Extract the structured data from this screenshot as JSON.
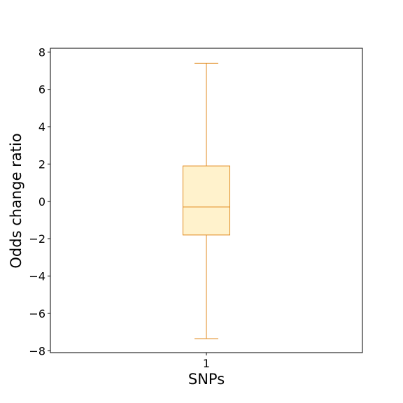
{
  "chart_data": {
    "type": "box",
    "title": "",
    "xlabel": "SNPs",
    "ylabel": "Odds change ratio",
    "categories": [
      "1"
    ],
    "series": [
      {
        "category": "1",
        "whisker_low": -7.35,
        "q1": -1.8,
        "median": -0.3,
        "q3": 1.9,
        "whisker_high": 7.4
      }
    ],
    "ylim": [
      -8.1,
      8.2
    ],
    "yticks": [
      -8,
      -6,
      -4,
      -2,
      0,
      2,
      4,
      6,
      8
    ],
    "ytick_labels": [
      "−8",
      "−6",
      "−4",
      "−2",
      "0",
      "2",
      "4",
      "6",
      "8"
    ],
    "grid": false,
    "colors": {
      "box_fill": "#fff2cc",
      "box_edge": "#e08a1e",
      "axes": "#000000"
    }
  }
}
